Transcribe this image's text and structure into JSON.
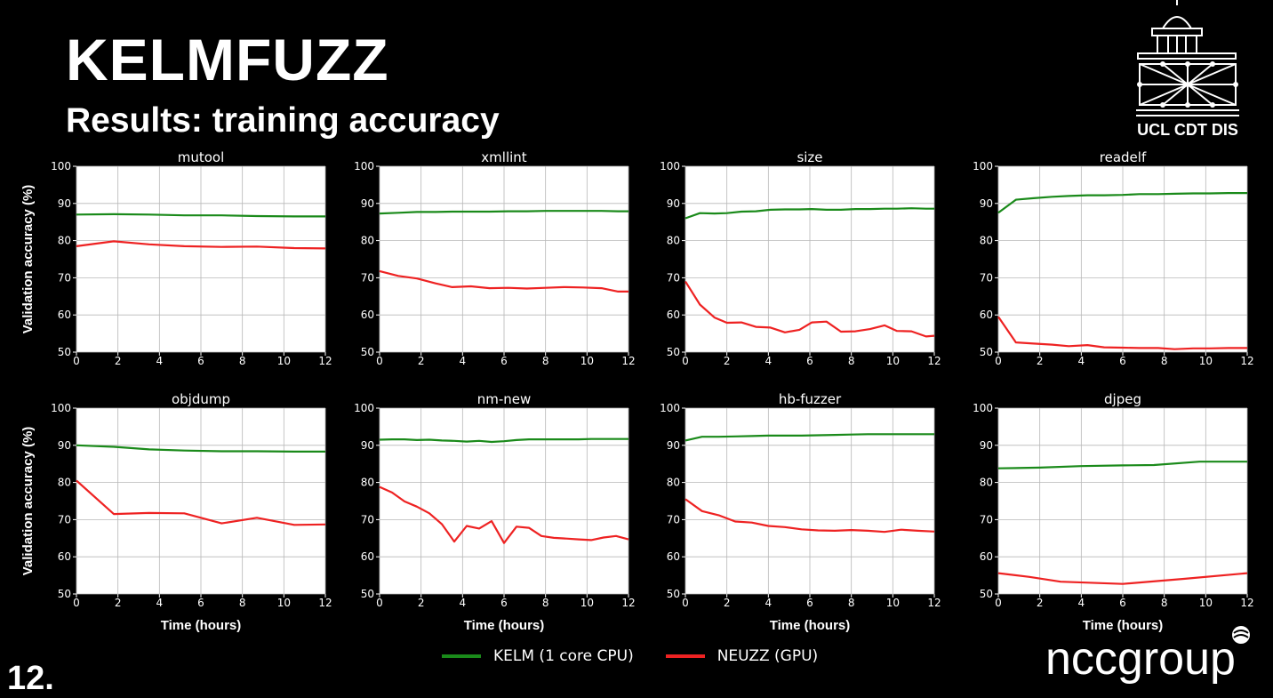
{
  "header": {
    "title": "KELMFUZZ",
    "subtitle": "Results: training accuracy"
  },
  "slide_number": "12.",
  "logos": {
    "ucl_text": "UCL CDT DIS",
    "ncc_text": "nccgroup"
  },
  "colors": {
    "kelm": "#1a8a1a",
    "neuzz": "#ee2222",
    "background": "#000000",
    "grid": "#b8b8b8"
  },
  "legend": [
    {
      "label": "KELM (1 core CPU)",
      "color": "#1a8a1a"
    },
    {
      "label": "NEUZZ (GPU)",
      "color": "#ee2222"
    }
  ],
  "chart_data": [
    {
      "type": "line",
      "title": "mutool",
      "ylabel": "Validation accuracy (%)",
      "xlabel": "",
      "xlim": [
        0,
        12
      ],
      "ylim": [
        50,
        100
      ],
      "xticks": [
        0,
        2,
        4,
        6,
        8,
        10,
        12
      ],
      "yticks": [
        50,
        60,
        70,
        80,
        90,
        100
      ],
      "grid": true,
      "series": [
        {
          "name": "KELM (1 core CPU)",
          "points": [
            [
              0,
              87
            ],
            [
              1.8,
              87.1
            ],
            [
              3.5,
              87
            ],
            [
              5.2,
              86.8
            ],
            [
              7,
              86.8
            ],
            [
              8.7,
              86.6
            ],
            [
              10.5,
              86.5
            ],
            [
              12,
              86.5
            ]
          ]
        },
        {
          "name": "NEUZZ (GPU)",
          "points": [
            [
              0,
              78.5
            ],
            [
              1.8,
              79.8
            ],
            [
              3.5,
              79
            ],
            [
              5.2,
              78.5
            ],
            [
              7,
              78.3
            ],
            [
              8.7,
              78.4
            ],
            [
              10.5,
              78
            ],
            [
              12,
              77.9
            ]
          ]
        }
      ]
    },
    {
      "type": "line",
      "title": "xmllint",
      "ylabel": "",
      "xlabel": "",
      "xlim": [
        0,
        12
      ],
      "ylim": [
        50,
        100
      ],
      "xticks": [
        0,
        2,
        4,
        6,
        8,
        10,
        12
      ],
      "yticks": [
        50,
        60,
        70,
        80,
        90,
        100
      ],
      "grid": true,
      "series": [
        {
          "name": "KELM (1 core CPU)",
          "points": [
            [
              0,
              87.3
            ],
            [
              0.9,
              87.5
            ],
            [
              1.8,
              87.7
            ],
            [
              2.7,
              87.7
            ],
            [
              3.5,
              87.8
            ],
            [
              4.4,
              87.8
            ],
            [
              5.3,
              87.8
            ],
            [
              6.2,
              87.9
            ],
            [
              7.1,
              87.9
            ],
            [
              8,
              88
            ],
            [
              8.9,
              88
            ],
            [
              9.8,
              88
            ],
            [
              10.7,
              88
            ],
            [
              11.5,
              87.9
            ],
            [
              12,
              87.9
            ]
          ]
        },
        {
          "name": "NEUZZ (GPU)",
          "points": [
            [
              0,
              71.8
            ],
            [
              0.9,
              70.5
            ],
            [
              1.8,
              69.8
            ],
            [
              2.7,
              68.5
            ],
            [
              3.5,
              67.5
            ],
            [
              4.4,
              67.7
            ],
            [
              5.3,
              67.2
            ],
            [
              6.2,
              67.3
            ],
            [
              7.1,
              67.1
            ],
            [
              8,
              67.3
            ],
            [
              8.9,
              67.5
            ],
            [
              9.8,
              67.4
            ],
            [
              10.7,
              67.2
            ],
            [
              11.5,
              66.3
            ],
            [
              12,
              66.3
            ]
          ]
        }
      ]
    },
    {
      "type": "line",
      "title": "size",
      "ylabel": "",
      "xlabel": "",
      "xlim": [
        0,
        12
      ],
      "ylim": [
        50,
        100
      ],
      "xticks": [
        0,
        2,
        4,
        6,
        8,
        10,
        12
      ],
      "yticks": [
        50,
        60,
        70,
        80,
        90,
        100
      ],
      "grid": true,
      "series": [
        {
          "name": "KELM (1 core CPU)",
          "points": [
            [
              0,
              86
            ],
            [
              0.7,
              87.4
            ],
            [
              1.4,
              87.3
            ],
            [
              2,
              87.4
            ],
            [
              2.7,
              87.8
            ],
            [
              3.4,
              87.9
            ],
            [
              4.1,
              88.3
            ],
            [
              4.8,
              88.4
            ],
            [
              5.5,
              88.4
            ],
            [
              6.1,
              88.5
            ],
            [
              6.8,
              88.3
            ],
            [
              7.5,
              88.3
            ],
            [
              8.2,
              88.5
            ],
            [
              8.9,
              88.5
            ],
            [
              9.6,
              88.6
            ],
            [
              10.2,
              88.6
            ],
            [
              10.9,
              88.7
            ],
            [
              11.6,
              88.6
            ],
            [
              12,
              88.6
            ]
          ]
        },
        {
          "name": "NEUZZ (GPU)",
          "points": [
            [
              0,
              69
            ],
            [
              0.7,
              62.8
            ],
            [
              1.4,
              59.3
            ],
            [
              2,
              57.9
            ],
            [
              2.7,
              58
            ],
            [
              3.4,
              56.8
            ],
            [
              4.1,
              56.6
            ],
            [
              4.8,
              55.3
            ],
            [
              5.5,
              56
            ],
            [
              6.1,
              58
            ],
            [
              6.8,
              58.2
            ],
            [
              7.5,
              55.5
            ],
            [
              8.2,
              55.6
            ],
            [
              8.9,
              56.2
            ],
            [
              9.6,
              57.2
            ],
            [
              10.2,
              55.7
            ],
            [
              10.9,
              55.6
            ],
            [
              11.6,
              54.2
            ],
            [
              12,
              54.4
            ]
          ]
        }
      ]
    },
    {
      "type": "line",
      "title": "readelf",
      "ylabel": "",
      "xlabel": "",
      "xlim": [
        0,
        12
      ],
      "ylim": [
        50,
        100
      ],
      "xticks": [
        0,
        2,
        4,
        6,
        8,
        10,
        12
      ],
      "yticks": [
        50,
        60,
        70,
        80,
        90,
        100
      ],
      "grid": true,
      "series": [
        {
          "name": "KELM (1 core CPU)",
          "points": [
            [
              0,
              87.5
            ],
            [
              0.85,
              91
            ],
            [
              1.7,
              91.4
            ],
            [
              2.6,
              91.8
            ],
            [
              3.4,
              92
            ],
            [
              4.3,
              92.2
            ],
            [
              5.1,
              92.2
            ],
            [
              6,
              92.3
            ],
            [
              6.8,
              92.5
            ],
            [
              7.7,
              92.5
            ],
            [
              8.5,
              92.6
            ],
            [
              9.4,
              92.7
            ],
            [
              10.2,
              92.7
            ],
            [
              11.1,
              92.8
            ],
            [
              12,
              92.8
            ]
          ]
        },
        {
          "name": "NEUZZ (GPU)",
          "points": [
            [
              0,
              59.5
            ],
            [
              0.85,
              52.6
            ],
            [
              1.7,
              52.3
            ],
            [
              2.6,
              52
            ],
            [
              3.4,
              51.6
            ],
            [
              4.3,
              51.9
            ],
            [
              5.1,
              51.3
            ],
            [
              6,
              51.2
            ],
            [
              6.8,
              51.1
            ],
            [
              7.7,
              51.1
            ],
            [
              8.5,
              50.8
            ],
            [
              9.4,
              51
            ],
            [
              10.2,
              51
            ],
            [
              11.1,
              51.1
            ],
            [
              12,
              51.1
            ]
          ]
        }
      ]
    },
    {
      "type": "line",
      "title": "objdump",
      "ylabel": "Validation accuracy (%)",
      "xlabel": "Time (hours)",
      "xlim": [
        0,
        12
      ],
      "ylim": [
        50,
        100
      ],
      "xticks": [
        0,
        2,
        4,
        6,
        8,
        10,
        12
      ],
      "yticks": [
        50,
        60,
        70,
        80,
        90,
        100
      ],
      "grid": true,
      "series": [
        {
          "name": "KELM (1 core CPU)",
          "points": [
            [
              0,
              90
            ],
            [
              1.8,
              89.6
            ],
            [
              3.5,
              88.9
            ],
            [
              5.2,
              88.6
            ],
            [
              7,
              88.4
            ],
            [
              8.7,
              88.4
            ],
            [
              10.5,
              88.3
            ],
            [
              12,
              88.3
            ]
          ]
        },
        {
          "name": "NEUZZ (GPU)",
          "points": [
            [
              0,
              80.5
            ],
            [
              1.8,
              71.5
            ],
            [
              3.5,
              71.8
            ],
            [
              5.2,
              71.7
            ],
            [
              7,
              69
            ],
            [
              8.7,
              70.5
            ],
            [
              10.5,
              68.6
            ],
            [
              12,
              68.7
            ]
          ]
        }
      ]
    },
    {
      "type": "line",
      "title": "nm-new",
      "ylabel": "",
      "xlabel": "Time (hours)",
      "xlim": [
        0,
        12
      ],
      "ylim": [
        50,
        100
      ],
      "xticks": [
        0,
        2,
        4,
        6,
        8,
        10,
        12
      ],
      "yticks": [
        50,
        60,
        70,
        80,
        90,
        100
      ],
      "grid": true,
      "series": [
        {
          "name": "KELM (1 core CPU)",
          "points": [
            [
              0,
              91.5
            ],
            [
              0.6,
              91.6
            ],
            [
              1.2,
              91.6
            ],
            [
              1.8,
              91.4
            ],
            [
              2.4,
              91.5
            ],
            [
              3,
              91.3
            ],
            [
              3.6,
              91.2
            ],
            [
              4.2,
              91
            ],
            [
              4.8,
              91.2
            ],
            [
              5.4,
              90.9
            ],
            [
              6,
              91.1
            ],
            [
              6.6,
              91.4
            ],
            [
              7.2,
              91.6
            ],
            [
              7.8,
              91.6
            ],
            [
              8.4,
              91.6
            ],
            [
              9,
              91.6
            ],
            [
              9.6,
              91.6
            ],
            [
              10.2,
              91.7
            ],
            [
              10.8,
              91.7
            ],
            [
              11.4,
              91.7
            ],
            [
              12,
              91.7
            ]
          ]
        },
        {
          "name": "NEUZZ (GPU)",
          "points": [
            [
              0,
              78.8
            ],
            [
              0.6,
              77.3
            ],
            [
              1.2,
              74.9
            ],
            [
              1.8,
              73.5
            ],
            [
              2.4,
              71.7
            ],
            [
              3,
              68.8
            ],
            [
              3.6,
              64.1
            ],
            [
              4.2,
              68.3
            ],
            [
              4.8,
              67.6
            ],
            [
              5.4,
              69.6
            ],
            [
              6,
              63.7
            ],
            [
              6.6,
              68.1
            ],
            [
              7.2,
              67.8
            ],
            [
              7.8,
              65.6
            ],
            [
              8.4,
              65.1
            ],
            [
              9,
              64.9
            ],
            [
              9.6,
              64.7
            ],
            [
              10.2,
              64.5
            ],
            [
              10.8,
              65.2
            ],
            [
              11.4,
              65.6
            ],
            [
              12,
              64.7
            ]
          ]
        }
      ]
    },
    {
      "type": "line",
      "title": "hb-fuzzer",
      "ylabel": "",
      "xlabel": "Time (hours)",
      "xlim": [
        0,
        12
      ],
      "ylim": [
        50,
        100
      ],
      "xticks": [
        0,
        2,
        4,
        6,
        8,
        10,
        12
      ],
      "yticks": [
        50,
        60,
        70,
        80,
        90,
        100
      ],
      "grid": true,
      "series": [
        {
          "name": "KELM (1 core CPU)",
          "points": [
            [
              0,
              91.3
            ],
            [
              0.8,
              92.3
            ],
            [
              1.6,
              92.3
            ],
            [
              2.4,
              92.4
            ],
            [
              3.2,
              92.5
            ],
            [
              4,
              92.6
            ],
            [
              4.8,
              92.6
            ],
            [
              5.6,
              92.6
            ],
            [
              6.4,
              92.7
            ],
            [
              7.2,
              92.8
            ],
            [
              8,
              92.9
            ],
            [
              8.8,
              93
            ],
            [
              9.6,
              93
            ],
            [
              10.4,
              93
            ],
            [
              11.2,
              93
            ],
            [
              12,
              93
            ]
          ]
        },
        {
          "name": "NEUZZ (GPU)",
          "points": [
            [
              0,
              75.5
            ],
            [
              0.8,
              72.3
            ],
            [
              1.6,
              71.2
            ],
            [
              2.4,
              69.5
            ],
            [
              3.2,
              69.2
            ],
            [
              4,
              68.3
            ],
            [
              4.8,
              68
            ],
            [
              5.6,
              67.4
            ],
            [
              6.4,
              67.1
            ],
            [
              7.2,
              67
            ],
            [
              8,
              67.2
            ],
            [
              8.8,
              67
            ],
            [
              9.6,
              66.7
            ],
            [
              10.4,
              67.3
            ],
            [
              11.2,
              67
            ],
            [
              12,
              66.8
            ]
          ]
        }
      ]
    },
    {
      "type": "line",
      "title": "djpeg",
      "ylabel": "",
      "xlabel": "Time (hours)",
      "xlim": [
        0,
        12
      ],
      "ylim": [
        50,
        100
      ],
      "xticks": [
        0,
        2,
        4,
        6,
        8,
        10,
        12
      ],
      "yticks": [
        50,
        60,
        70,
        80,
        90,
        100
      ],
      "grid": true,
      "series": [
        {
          "name": "KELM (1 core CPU)",
          "points": [
            [
              0,
              83.8
            ],
            [
              2,
              84
            ],
            [
              4,
              84.4
            ],
            [
              6,
              84.6
            ],
            [
              7.5,
              84.7
            ],
            [
              9.7,
              85.6
            ],
            [
              12,
              85.6
            ]
          ]
        },
        {
          "name": "NEUZZ (GPU)",
          "points": [
            [
              0,
              55.6
            ],
            [
              1.5,
              54.6
            ],
            [
              3,
              53.3
            ],
            [
              6,
              52.7
            ],
            [
              9,
              54.1
            ],
            [
              12,
              55.6
            ]
          ]
        }
      ]
    }
  ]
}
